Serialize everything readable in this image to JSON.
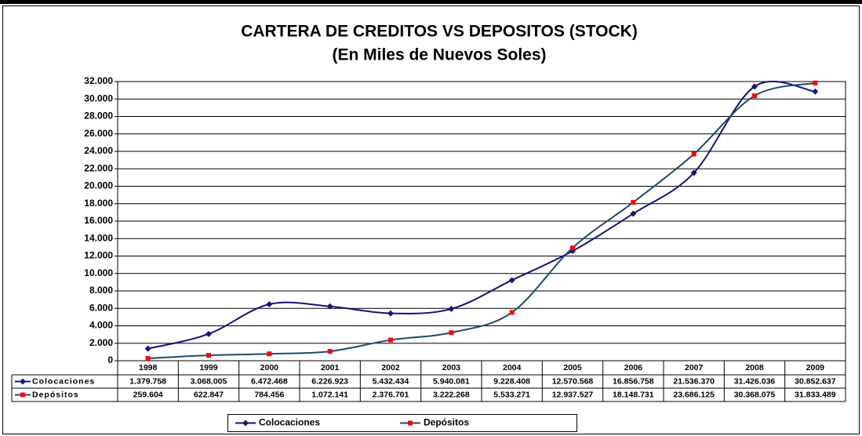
{
  "chart_data": {
    "type": "line",
    "title": "CARTERA DE CREDITOS VS DEPOSITOS (STOCK)",
    "subtitle": "(En Miles de Nuevos Soles)",
    "categories": [
      "1998",
      "1999",
      "2000",
      "2001",
      "2002",
      "2003",
      "2004",
      "2005",
      "2006",
      "2007",
      "2008",
      "2009"
    ],
    "series": [
      {
        "name": "Colocaciones",
        "color": "#14147a",
        "marker": "diamond",
        "marker_color": "#14147a",
        "values": [
          1379.758,
          3068.005,
          6472.468,
          6226.923,
          5432.434,
          5940.081,
          9228.408,
          12570.568,
          16856.758,
          21536.37,
          31426.036,
          30852.637
        ],
        "value_labels": [
          "1.379.758",
          "3.068.005",
          "6.472.468",
          "6.226.923",
          "5.432.434",
          "5.940.081",
          "9.228.408",
          "12.570.568",
          "16.856.758",
          "21.536.370",
          "31.426.036",
          "30.852.637"
        ]
      },
      {
        "name": "Depósitos",
        "color": "#1c4a6a",
        "marker": "square",
        "marker_color": "#ff0000",
        "values": [
          259.604,
          622.847,
          784.456,
          1072.141,
          2376.701,
          3222.268,
          5533.271,
          12937.527,
          18148.731,
          23686.125,
          30368.075,
          31833.489
        ],
        "value_labels": [
          "259.604",
          "622.847",
          "784.456",
          "1.072.141",
          "2.376.701",
          "3.222.268",
          "5.533.271",
          "12.937.527",
          "18.148.731",
          "23.686.125",
          "30.368.075",
          "31.833.489"
        ]
      }
    ],
    "ylim": [
      0,
      32000
    ],
    "yticks": [
      0,
      {
        "value": 2000,
        "label": "2.000"
      },
      {
        "value": 4000,
        "label": "4.000"
      },
      {
        "value": 6000,
        "label": "6.000"
      },
      {
        "value": 8000,
        "label": "8.000"
      },
      {
        "value": 10000,
        "label": "10.000"
      },
      {
        "value": 12000,
        "label": "12.000"
      },
      {
        "value": 14000,
        "label": "14.000"
      },
      {
        "value": 16000,
        "label": "16.000"
      },
      {
        "value": 18000,
        "label": "18.000"
      },
      {
        "value": 20000,
        "label": "20.000"
      },
      {
        "value": 22000,
        "label": "22.000"
      },
      {
        "value": 24000,
        "label": "24.000"
      },
      {
        "value": 26000,
        "label": "26.000"
      },
      {
        "value": 28000,
        "label": "28.000"
      },
      {
        "value": 30000,
        "label": "30.000"
      },
      {
        "value": 32000,
        "label": "32.000"
      }
    ],
    "grid": true,
    "legend": "bottom",
    "data_table": true
  }
}
